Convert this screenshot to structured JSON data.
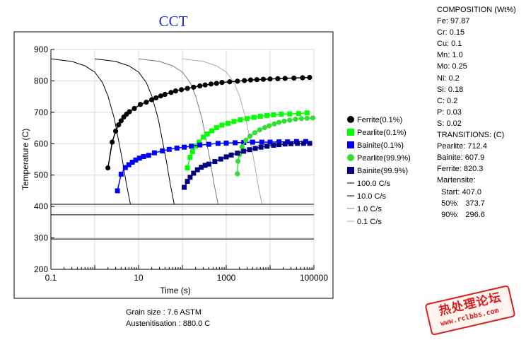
{
  "chart_data": {
    "type": "scatter",
    "title": "CCT",
    "xlabel": "Time (s)",
    "ylabel": "Temperature (C)",
    "xscale": "log",
    "xlim": [
      0.1,
      100000
    ],
    "ylim": [
      200,
      900
    ],
    "x_ticks": [
      0.1,
      10,
      1000,
      100000
    ],
    "x_tick_labels": [
      "0.1",
      "10",
      "1000",
      "100000"
    ],
    "y_ticks": [
      200,
      300,
      400,
      500,
      600,
      700,
      800,
      900
    ],
    "y_tick_labels": [
      "200",
      "300",
      "400",
      "500",
      "600",
      "700",
      "800",
      "900"
    ],
    "grid": true,
    "legend_position": "right",
    "series": [
      {
        "name": "Ferrite(0.1%)",
        "marker": "circle",
        "color": "#000000",
        "points": [
          [
            2.0,
            523
          ],
          [
            2.5,
            605
          ],
          [
            3.0,
            640
          ],
          [
            3.5,
            660
          ],
          [
            4.0,
            673
          ],
          [
            4.6,
            685
          ],
          [
            5.3,
            694
          ],
          [
            6.2,
            702
          ],
          [
            8,
            712
          ],
          [
            11,
            725
          ],
          [
            15,
            732
          ],
          [
            20,
            740
          ],
          [
            25,
            746
          ],
          [
            32,
            752
          ],
          [
            40,
            757
          ],
          [
            55,
            763
          ],
          [
            70,
            768
          ],
          [
            95,
            772
          ],
          [
            130,
            776
          ],
          [
            180,
            780
          ],
          [
            250,
            784
          ],
          [
            330,
            787
          ],
          [
            450,
            790
          ],
          [
            600,
            792
          ],
          [
            800,
            795
          ],
          [
            1200,
            797
          ],
          [
            1800,
            799
          ],
          [
            2600,
            801
          ],
          [
            3600,
            803
          ],
          [
            5000,
            804
          ],
          [
            7000,
            805
          ],
          [
            10000,
            806
          ],
          [
            15000,
            807
          ],
          [
            22000,
            808
          ],
          [
            35000,
            809
          ],
          [
            55000,
            810
          ],
          [
            80000,
            811
          ]
        ]
      },
      {
        "name": "Pearlite(0.1%)",
        "marker": "square",
        "color": "#00ff00",
        "points": [
          [
            130,
            523
          ],
          [
            150,
            557
          ],
          [
            170,
            575
          ],
          [
            200,
            593
          ],
          [
            240,
            605
          ],
          [
            300,
            621
          ],
          [
            370,
            631
          ],
          [
            470,
            641
          ],
          [
            600,
            651
          ],
          [
            800,
            659
          ],
          [
            1100,
            665
          ],
          [
            1500,
            671
          ],
          [
            2100,
            676
          ],
          [
            3000,
            680
          ],
          [
            4300,
            684
          ],
          [
            6000,
            687
          ],
          [
            8500,
            690
          ],
          [
            12000,
            692
          ],
          [
            18000,
            694
          ],
          [
            28000,
            695
          ],
          [
            45000,
            696
          ],
          [
            70000,
            698
          ]
        ]
      },
      {
        "name": "Bainite(0.1%)",
        "marker": "square",
        "color": "#0000ff",
        "points": [
          [
            3.3,
            450
          ],
          [
            4.0,
            503
          ],
          [
            5.0,
            524
          ],
          [
            6.0,
            533
          ],
          [
            7.2,
            541
          ],
          [
            8.6,
            548
          ],
          [
            10.5,
            554
          ],
          [
            13,
            559
          ],
          [
            17,
            563
          ],
          [
            23,
            571
          ],
          [
            35,
            577
          ],
          [
            50,
            582
          ],
          [
            75,
            586
          ],
          [
            110,
            589
          ],
          [
            160,
            592
          ],
          [
            250,
            596
          ],
          [
            400,
            598
          ],
          [
            650,
            601
          ],
          [
            1000,
            602
          ],
          [
            1600,
            603
          ],
          [
            2500,
            604
          ],
          [
            4000,
            605
          ],
          [
            6500,
            605
          ],
          [
            10000,
            605
          ],
          [
            16000,
            606
          ],
          [
            25000,
            606
          ],
          [
            40000,
            607
          ],
          [
            65000,
            607
          ]
        ]
      },
      {
        "name": "Pearlite(99.9%)",
        "marker": "circle",
        "color": "#33dd33",
        "points": [
          [
            1800,
            504
          ],
          [
            1850,
            544
          ],
          [
            2000,
            565
          ],
          [
            2300,
            590
          ],
          [
            2800,
            611
          ],
          [
            3500,
            624
          ],
          [
            4500,
            635
          ],
          [
            5800,
            644
          ],
          [
            7500,
            651
          ],
          [
            9500,
            657
          ],
          [
            12500,
            663
          ],
          [
            16000,
            668
          ],
          [
            21000,
            672
          ],
          [
            28000,
            675
          ],
          [
            38000,
            678
          ],
          [
            52000,
            680
          ],
          [
            70000,
            681
          ],
          [
            95000,
            682
          ]
        ]
      },
      {
        "name": "Bainite(99.9%)",
        "marker": "square",
        "color": "#000080",
        "points": [
          [
            110,
            461
          ],
          [
            130,
            480
          ],
          [
            150,
            493
          ],
          [
            180,
            506
          ],
          [
            220,
            517
          ],
          [
            270,
            525
          ],
          [
            330,
            531
          ],
          [
            400,
            535
          ],
          [
            550,
            543
          ],
          [
            750,
            551
          ],
          [
            1000,
            558
          ],
          [
            1300,
            564
          ],
          [
            1800,
            570
          ],
          [
            2500,
            576
          ],
          [
            3400,
            581
          ],
          [
            4600,
            585
          ],
          [
            6200,
            589
          ],
          [
            8500,
            592
          ],
          [
            12000,
            595
          ],
          [
            16000,
            597
          ],
          [
            22000,
            599
          ],
          [
            30000,
            600
          ],
          [
            42000,
            601
          ],
          [
            58000,
            601
          ],
          [
            80000,
            601
          ]
        ]
      }
    ],
    "cooling_curves": [
      {
        "name": "100.0 C/s",
        "color": "#000000",
        "points": [
          [
            0.1,
            870
          ],
          [
            0.3,
            862
          ],
          [
            0.6,
            848
          ],
          [
            1.0,
            828
          ],
          [
            1.5,
            795
          ],
          [
            2.0,
            752
          ],
          [
            2.8,
            680
          ],
          [
            3.5,
            610
          ],
          [
            4.3,
            545
          ],
          [
            5.3,
            470
          ],
          [
            6.5,
            408
          ]
        ]
      },
      {
        "name": "10.0 C/s",
        "color": "#000000",
        "points": [
          [
            1.0,
            870
          ],
          [
            3,
            862
          ],
          [
            6,
            848
          ],
          [
            10,
            828
          ],
          [
            15,
            795
          ],
          [
            20,
            752
          ],
          [
            28,
            680
          ],
          [
            35,
            610
          ],
          [
            43,
            545
          ],
          [
            53,
            470
          ],
          [
            65,
            408
          ]
        ]
      },
      {
        "name": "1.0 C/s",
        "color": "#777777",
        "points": [
          [
            10,
            870
          ],
          [
            30,
            862
          ],
          [
            60,
            848
          ],
          [
            100,
            828
          ],
          [
            150,
            795
          ],
          [
            200,
            752
          ],
          [
            280,
            680
          ],
          [
            350,
            610
          ],
          [
            430,
            545
          ],
          [
            530,
            470
          ],
          [
            650,
            408
          ]
        ]
      },
      {
        "name": "0.1 C/s",
        "color": "#aaaaaa",
        "points": [
          [
            100,
            870
          ],
          [
            300,
            862
          ],
          [
            600,
            848
          ],
          [
            1000,
            828
          ],
          [
            1500,
            795
          ],
          [
            2000,
            752
          ],
          [
            2800,
            680
          ],
          [
            3500,
            610
          ],
          [
            4300,
            545
          ],
          [
            5300,
            470
          ],
          [
            6500,
            408
          ]
        ]
      }
    ],
    "reference_lines": [
      {
        "value": 407.0,
        "label": "Martensite Start"
      },
      {
        "value": 373.7,
        "label": "50%"
      },
      {
        "value": 296.6,
        "label": "90%"
      }
    ]
  },
  "composition": {
    "header": "COMPOSITION (Wt%)",
    "items": [
      "Fe: 97.87",
      "Cr: 0.15",
      "Cu: 0.1",
      "Mn: 1.0",
      "Mo: 0.25",
      "Ni: 0.2",
      "Si: 0.18",
      "C: 0.2",
      "P: 0.03",
      "S: 0.02"
    ]
  },
  "transitions": {
    "header": "TRANSITIONS: (C)",
    "items": [
      "Pearlite: 712.4",
      "Bainite: 607.9",
      "Ferrite: 820.3"
    ],
    "martensite_header": "Martensite:",
    "martensite_items": [
      "  Start: 407.0",
      "  50%:   373.7",
      "  90%:   296.6"
    ]
  },
  "footer": {
    "grain_size": "Grain size : 7.6 ASTM",
    "austenitisation": "Austenitisation : 880.0 C"
  },
  "watermark": {
    "line1": "热处理论坛",
    "line2": "www.rclbbs.com"
  }
}
